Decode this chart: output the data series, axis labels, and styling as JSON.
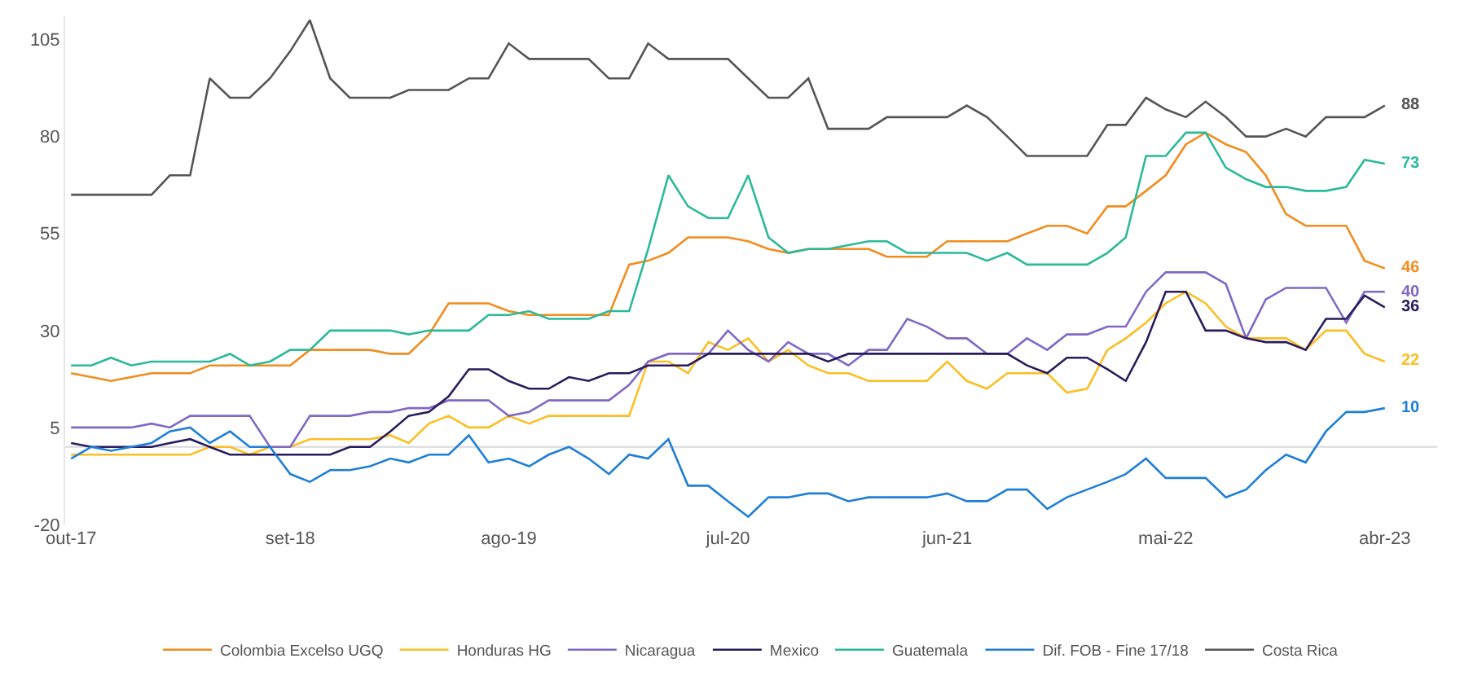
{
  "chart_data": {
    "type": "line",
    "x": [
      "2017-10",
      "2017-11",
      "2017-12",
      "2018-01",
      "2018-02",
      "2018-03",
      "2018-04",
      "2018-05",
      "2018-06",
      "2018-07",
      "2018-08",
      "2018-09",
      "2018-10",
      "2018-11",
      "2018-12",
      "2019-01",
      "2019-02",
      "2019-03",
      "2019-04",
      "2019-05",
      "2019-06",
      "2019-07",
      "2019-08",
      "2019-09",
      "2019-10",
      "2019-11",
      "2019-12",
      "2020-01",
      "2020-02",
      "2020-03",
      "2020-04",
      "2020-05",
      "2020-06",
      "2020-07",
      "2020-08",
      "2020-09",
      "2020-10",
      "2020-11",
      "2020-12",
      "2021-01",
      "2021-02",
      "2021-03",
      "2021-04",
      "2021-05",
      "2021-06",
      "2021-07",
      "2021-08",
      "2021-09",
      "2021-10",
      "2021-11",
      "2021-12",
      "2022-01",
      "2022-02",
      "2022-03",
      "2022-04",
      "2022-05",
      "2022-06",
      "2022-07",
      "2022-08",
      "2022-09",
      "2022-10",
      "2022-11",
      "2022-12",
      "2023-01",
      "2023-02",
      "2023-03",
      "2023-04"
    ],
    "xlim": [
      "2017-09-22",
      "2023-06-20"
    ],
    "xticks": [
      {
        "value": "2017-10",
        "label": "out-17"
      },
      {
        "value": "2018-09",
        "label": "set-18"
      },
      {
        "value": "2019-08",
        "label": "ago-19"
      },
      {
        "value": "2020-07",
        "label": "jul-20"
      },
      {
        "value": "2021-06",
        "label": "jun-21"
      },
      {
        "value": "2022-05",
        "label": "mai-22"
      },
      {
        "value": "2023-04",
        "label": "abr-23"
      }
    ],
    "ylim": [
      -20,
      111
    ],
    "yticks": [
      -20,
      5,
      30,
      55,
      80,
      105
    ],
    "grid": false,
    "legend": "bottom",
    "ref_lines": [
      {
        "axis": "y",
        "value": 0,
        "color": "#d9d9d9"
      }
    ],
    "series": [
      {
        "name": "Colombia Excelso UGQ",
        "color": "#f28c1e",
        "values": [
          19,
          18,
          17,
          18,
          19,
          19,
          19,
          21,
          21,
          21,
          21,
          21,
          25,
          25,
          25,
          25,
          24,
          24,
          29,
          37,
          37,
          37,
          35,
          34,
          34,
          34,
          34,
          34,
          47,
          48,
          50,
          54,
          54,
          54,
          53,
          51,
          50,
          51,
          51,
          51,
          51,
          49,
          49,
          49,
          53,
          53,
          53,
          53,
          55,
          57,
          57,
          55,
          62,
          62,
          66,
          70,
          78,
          81,
          78,
          76,
          70,
          60,
          57,
          57,
          57,
          48,
          46
        ]
      },
      {
        "name": "Honduras HG",
        "color": "#fbbf24",
        "values": [
          -2,
          -2,
          -2,
          -2,
          -2,
          -2,
          -2,
          0,
          0,
          -2,
          0,
          0,
          2,
          2,
          2,
          2,
          3,
          1,
          6,
          8,
          5,
          5,
          8,
          6,
          8,
          8,
          8,
          8,
          8,
          22,
          22,
          19,
          27,
          25,
          28,
          22,
          25,
          21,
          19,
          19,
          17,
          17,
          17,
          17,
          22,
          17,
          15,
          19,
          19,
          19,
          14,
          15,
          25,
          28,
          32,
          37,
          40,
          37,
          31,
          28,
          28,
          28,
          25,
          30,
          30,
          24,
          22
        ]
      },
      {
        "name": "Nicaragua",
        "color": "#8068c4",
        "values": [
          5,
          5,
          5,
          5,
          6,
          5,
          8,
          8,
          8,
          8,
          0,
          0,
          8,
          8,
          8,
          9,
          9,
          10,
          10,
          12,
          12,
          12,
          8,
          9,
          12,
          12,
          12,
          12,
          16,
          22,
          24,
          24,
          24,
          30,
          25,
          22,
          27,
          24,
          24,
          21,
          25,
          25,
          33,
          31,
          28,
          28,
          24,
          24,
          28,
          25,
          29,
          29,
          31,
          31,
          40,
          45,
          45,
          45,
          42,
          28,
          38,
          41,
          41,
          41,
          32,
          40,
          40
        ]
      },
      {
        "name": "Mexico",
        "color": "#2a1b5c",
        "values": [
          1,
          0,
          0,
          0,
          0,
          1,
          2,
          0,
          -2,
          -2,
          -2,
          -2,
          -2,
          -2,
          0,
          0,
          4,
          8,
          9,
          13,
          20,
          20,
          17,
          15,
          15,
          18,
          17,
          19,
          19,
          21,
          21,
          21,
          24,
          24,
          24,
          24,
          24,
          24,
          22,
          24,
          24,
          24,
          24,
          24,
          24,
          24,
          24,
          24,
          21,
          19,
          23,
          23,
          20,
          17,
          27,
          40,
          40,
          30,
          30,
          28,
          27,
          27,
          25,
          33,
          33,
          39,
          36
        ]
      },
      {
        "name": "Guatemala",
        "color": "#2bb99a",
        "values": [
          21,
          21,
          23,
          21,
          22,
          22,
          22,
          22,
          24,
          21,
          22,
          25,
          25,
          30,
          30,
          30,
          30,
          29,
          30,
          30,
          30,
          34,
          34,
          35,
          33,
          33,
          33,
          35,
          35,
          51,
          70,
          62,
          59,
          59,
          70,
          54,
          50,
          51,
          51,
          52,
          53,
          53,
          50,
          50,
          50,
          50,
          48,
          50,
          47,
          47,
          47,
          47,
          50,
          54,
          75,
          75,
          81,
          81,
          72,
          69,
          67,
          67,
          66,
          66,
          67,
          74,
          73
        ]
      },
      {
        "name": "Dif. FOB - Fine 17/18",
        "color": "#1f7fd8",
        "values": [
          -3,
          0,
          -1,
          0,
          1,
          4,
          5,
          1,
          4,
          0,
          0,
          -7,
          -9,
          -6,
          -6,
          -5,
          -3,
          -4,
          -2,
          -2,
          3,
          -4,
          -3,
          -5,
          -2,
          0,
          -3,
          -7,
          -2,
          -3,
          2,
          -10,
          -10,
          -14,
          -18,
          -13,
          -13,
          -12,
          -12,
          -14,
          -13,
          -13,
          -13,
          -13,
          -12,
          -14,
          -14,
          -11,
          -11,
          -16,
          -13,
          -11,
          -9,
          -7,
          -3,
          -8,
          -8,
          -8,
          -13,
          -11,
          -6,
          -2,
          -4,
          4,
          9,
          9,
          10
        ]
      },
      {
        "name": "Costa Rica",
        "color": "#555555",
        "values": [
          65,
          65,
          65,
          65,
          65,
          70,
          70,
          95,
          90,
          90,
          95,
          102,
          110,
          95,
          90,
          90,
          90,
          92,
          92,
          92,
          95,
          95,
          104,
          100,
          100,
          100,
          100,
          95,
          95,
          104,
          100,
          100,
          100,
          100,
          95,
          90,
          90,
          95,
          82,
          82,
          82,
          85,
          85,
          85,
          85,
          88,
          85,
          80,
          75,
          75,
          75,
          75,
          83,
          83,
          90,
          87,
          85,
          89,
          85,
          80,
          80,
          82,
          80,
          85,
          85,
          85,
          88
        ]
      }
    ],
    "annotations": [
      {
        "text": "88",
        "x": "2023-04",
        "y": 88
      },
      {
        "text": "73",
        "x": "2023-04",
        "y": 73
      },
      {
        "text": "46",
        "x": "2023-04",
        "y": 46
      },
      {
        "text": "40",
        "x": "2023-04",
        "y": 40
      },
      {
        "text": "36",
        "x": "2023-04",
        "y": 36
      },
      {
        "text": "22",
        "x": "2023-04",
        "y": 22
      },
      {
        "text": "10",
        "x": "2023-04",
        "y": 10
      }
    ]
  }
}
